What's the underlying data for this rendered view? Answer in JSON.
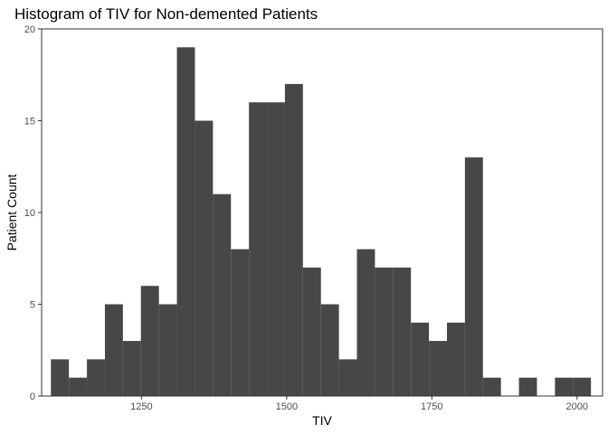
{
  "chart_data": {
    "type": "bar",
    "title": "Histogram of TIV for Non-demented Patients",
    "xlabel": "TIV",
    "ylabel": "Patient Count",
    "xlim": [
      1078,
      2044
    ],
    "ylim": [
      0,
      20
    ],
    "grid": false,
    "bin_width": 31,
    "bins": [
      {
        "x0": 1094,
        "x1": 1125,
        "count": 2
      },
      {
        "x0": 1125,
        "x1": 1156,
        "count": 1
      },
      {
        "x0": 1156,
        "x1": 1187,
        "count": 2
      },
      {
        "x0": 1187,
        "x1": 1218,
        "count": 5
      },
      {
        "x0": 1218,
        "x1": 1249,
        "count": 3
      },
      {
        "x0": 1249,
        "x1": 1280,
        "count": 6
      },
      {
        "x0": 1280,
        "x1": 1311,
        "count": 5
      },
      {
        "x0": 1311,
        "x1": 1342,
        "count": 19
      },
      {
        "x0": 1342,
        "x1": 1373,
        "count": 15
      },
      {
        "x0": 1373,
        "x1": 1404,
        "count": 11
      },
      {
        "x0": 1404,
        "x1": 1435,
        "count": 8
      },
      {
        "x0": 1435,
        "x1": 1466,
        "count": 16
      },
      {
        "x0": 1466,
        "x1": 1497,
        "count": 16
      },
      {
        "x0": 1497,
        "x1": 1528,
        "count": 17
      },
      {
        "x0": 1528,
        "x1": 1559,
        "count": 7
      },
      {
        "x0": 1559,
        "x1": 1590,
        "count": 5
      },
      {
        "x0": 1590,
        "x1": 1621,
        "count": 2
      },
      {
        "x0": 1621,
        "x1": 1652,
        "count": 8
      },
      {
        "x0": 1652,
        "x1": 1683,
        "count": 7
      },
      {
        "x0": 1683,
        "x1": 1714,
        "count": 7
      },
      {
        "x0": 1714,
        "x1": 1745,
        "count": 4
      },
      {
        "x0": 1745,
        "x1": 1776,
        "count": 3
      },
      {
        "x0": 1776,
        "x1": 1807,
        "count": 4
      },
      {
        "x0": 1807,
        "x1": 1838,
        "count": 13
      },
      {
        "x0": 1838,
        "x1": 1869,
        "count": 1
      },
      {
        "x0": 1869,
        "x1": 1900,
        "count": 0
      },
      {
        "x0": 1900,
        "x1": 1931,
        "count": 1
      },
      {
        "x0": 1931,
        "x1": 1962,
        "count": 0
      },
      {
        "x0": 1962,
        "x1": 1993,
        "count": 1
      },
      {
        "x0": 1993,
        "x1": 2024,
        "count": 1
      }
    ],
    "x_ticks": [
      1250,
      1500,
      1750,
      2000
    ],
    "y_ticks": [
      0,
      5,
      10,
      15,
      20
    ],
    "colors": {
      "bar": "#474747",
      "axis": "#333333",
      "tick_text": "#4d4d4d"
    }
  }
}
